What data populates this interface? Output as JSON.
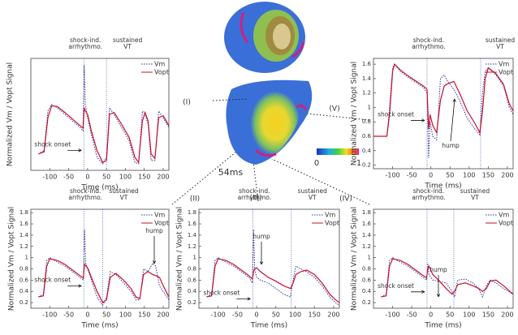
{
  "chart_data": [
    {
      "type": "line",
      "panel_label": "(I)",
      "xlabel": "Time (ms)",
      "ylabel": "Normalized Vm / Vopt Signal",
      "x": [
        -130,
        -115,
        -105,
        -95,
        -80,
        -60,
        -40,
        -20,
        -12,
        -9,
        -6,
        0,
        10,
        25,
        40,
        50,
        58,
        70,
        90,
        110,
        125,
        135,
        145,
        152,
        160,
        168,
        178,
        188,
        200,
        215
      ],
      "series": [
        {
          "name": "Vm",
          "color": "#33339a",
          "values": [
            0.25,
            0.3,
            0.9,
            1.0,
            0.95,
            0.85,
            0.75,
            0.65,
            0.6,
            1.6,
            1.0,
            0.8,
            0.55,
            0.2,
            0.1,
            0.2,
            0.95,
            0.85,
            0.65,
            0.45,
            0.12,
            0.1,
            0.9,
            0.85,
            0.7,
            0.15,
            0.15,
            0.9,
            0.8,
            0.65
          ]
        },
        {
          "name": "Vopt",
          "color": "#c8102e",
          "values": [
            0.25,
            0.28,
            0.8,
            0.98,
            0.97,
            0.88,
            0.78,
            0.68,
            0.64,
            0.95,
            0.9,
            0.85,
            0.6,
            0.3,
            0.12,
            0.15,
            0.85,
            0.88,
            0.7,
            0.5,
            0.2,
            0.12,
            0.75,
            0.88,
            0.75,
            0.25,
            0.18,
            0.8,
            0.83,
            0.68
          ]
        }
      ],
      "xlim": [
        -150,
        215
      ],
      "ylim": [
        0,
        1.7
      ],
      "xticks": [
        -100,
        -50,
        0,
        50,
        100,
        150,
        200
      ],
      "vlines": [
        -10,
        50
      ],
      "legend": "upper right",
      "annotations": [
        "shock-ind.",
        "arrhythmo.",
        "sustained",
        "VT",
        "shock onset"
      ]
    },
    {
      "type": "line",
      "panel_label": "(V)",
      "xlabel": "Time (ms)",
      "ylabel": "Normalized Vm / Vopt Signal",
      "x": [
        -150,
        -115,
        -108,
        -100,
        -95,
        -80,
        -60,
        -40,
        -20,
        -10,
        -6,
        -2,
        5,
        15,
        25,
        35,
        45,
        60,
        75,
        95,
        115,
        128,
        135,
        142,
        150,
        170,
        190,
        205,
        215
      ],
      "series": [
        {
          "name": "Vm",
          "color": "#33339a",
          "values": [
            0.6,
            0.6,
            1.0,
            1.55,
            1.6,
            1.5,
            1.42,
            1.35,
            1.28,
            1.2,
            0.3,
            0.8,
            0.6,
            0.55,
            1.4,
            1.45,
            1.35,
            1.25,
            1.1,
            0.85,
            0.7,
            0.62,
            1.2,
            1.5,
            1.55,
            1.45,
            1.3,
            1.0,
            0.9
          ]
        },
        {
          "name": "Vopt",
          "color": "#c8102e",
          "values": [
            0.6,
            0.6,
            0.9,
            1.5,
            1.6,
            1.52,
            1.44,
            1.37,
            1.3,
            1.25,
            0.7,
            0.9,
            0.75,
            0.65,
            1.1,
            1.3,
            1.33,
            1.36,
            1.2,
            0.95,
            0.78,
            0.65,
            0.95,
            1.4,
            1.55,
            1.47,
            1.32,
            1.05,
            0.95
          ]
        }
      ],
      "xlim": [
        -150,
        215
      ],
      "ylim": [
        0.15,
        1.68
      ],
      "xticks": [
        -100,
        -50,
        0,
        50,
        100,
        150,
        200
      ],
      "yticks": [
        0.2,
        0.4,
        0.6,
        0.8,
        1,
        1.2,
        1.4,
        1.6
      ],
      "vlines": [
        -10,
        130
      ],
      "legend": "upper right",
      "annotations": [
        "shock-ind.",
        "arrhythmo.",
        "sustained",
        "VT",
        "shock onset",
        "hump"
      ]
    },
    {
      "type": "line",
      "panel_label": "(II)",
      "xlabel": "Time (ms)",
      "ylabel": "Normalized Vm / Vopt Signal",
      "x": [
        -130,
        -117,
        -108,
        -100,
        -80,
        -60,
        -40,
        -20,
        -11,
        -8,
        -5,
        0,
        10,
        25,
        40,
        50,
        60,
        75,
        95,
        115,
        128,
        138,
        148,
        160,
        172,
        180,
        190,
        200,
        215
      ],
      "series": [
        {
          "name": "Vm",
          "color": "#33339a",
          "values": [
            0.3,
            0.35,
            0.95,
            1.0,
            0.92,
            0.85,
            0.75,
            0.65,
            0.6,
            1.5,
            0.9,
            0.8,
            0.6,
            0.3,
            0.15,
            0.3,
            0.75,
            0.7,
            0.55,
            0.4,
            0.25,
            0.25,
            0.8,
            0.75,
            0.9,
            0.85,
            0.5,
            0.4,
            0.25
          ]
        },
        {
          "name": "Vopt",
          "color": "#c8102e",
          "values": [
            0.3,
            0.32,
            0.85,
            0.98,
            0.95,
            0.88,
            0.78,
            0.68,
            0.64,
            0.88,
            0.86,
            0.82,
            0.65,
            0.4,
            0.2,
            0.25,
            0.65,
            0.72,
            0.6,
            0.45,
            0.3,
            0.27,
            0.7,
            0.75,
            0.7,
            0.68,
            0.65,
            0.5,
            0.3
          ]
        }
      ],
      "xlim": [
        -150,
        215
      ],
      "ylim": [
        0.1,
        1.86
      ],
      "xticks": [
        -100,
        -50,
        0,
        50,
        100,
        150,
        200
      ],
      "yticks": [
        0.2,
        0.4,
        0.6,
        0.8,
        1,
        1.2,
        1.4,
        1.6,
        1.8
      ],
      "vlines": [
        -10,
        40
      ],
      "legend": "upper right",
      "annotations": [
        "shock-ind.",
        "arrhythmo.",
        "sustained",
        "VT",
        "shock onset",
        "hump"
      ]
    },
    {
      "type": "line",
      "panel_label": "(III)",
      "xlabel": "Time (ms)",
      "ylabel": "Normalized Vm / Vopt Signal",
      "x": [
        -130,
        -117,
        -108,
        -100,
        -80,
        -60,
        -40,
        -20,
        -11,
        -8,
        -5,
        0,
        10,
        30,
        50,
        70,
        88,
        95,
        102,
        115,
        130,
        150,
        170,
        190,
        205,
        215
      ],
      "series": [
        {
          "name": "Vm",
          "color": "#33339a",
          "values": [
            0.3,
            0.35,
            0.95,
            1.0,
            0.92,
            0.85,
            0.75,
            0.65,
            0.55,
            1.5,
            0.8,
            0.65,
            0.6,
            0.55,
            0.45,
            0.35,
            0.3,
            0.6,
            0.85,
            0.8,
            0.75,
            0.65,
            0.5,
            0.3,
            0.2,
            0.15
          ]
        },
        {
          "name": "Vopt",
          "color": "#c8102e",
          "values": [
            0.3,
            0.32,
            0.85,
            0.98,
            0.95,
            0.88,
            0.78,
            0.68,
            0.62,
            0.75,
            0.8,
            0.82,
            0.75,
            0.65,
            0.58,
            0.5,
            0.45,
            0.55,
            0.7,
            0.75,
            0.78,
            0.7,
            0.55,
            0.35,
            0.25,
            0.2
          ]
        }
      ],
      "xlim": [
        -150,
        215
      ],
      "ylim": [
        0.1,
        1.86
      ],
      "xticks": [
        -100,
        -50,
        0,
        50,
        100,
        150,
        200
      ],
      "yticks": [
        0.2,
        0.4,
        0.6,
        0.8,
        1,
        1.2,
        1.4,
        1.6,
        1.8
      ],
      "vlines": [
        -10,
        90
      ],
      "legend": "upper right",
      "annotations": [
        "shock-ind.",
        "arrhythmo.",
        "sustained",
        "VT",
        "shock onset",
        "hump"
      ]
    },
    {
      "type": "line",
      "panel_label": "(IV)",
      "xlabel": "Time (ms)",
      "ylabel": "Normalized Vm / Vopt Signal",
      "x": [
        -130,
        -117,
        -108,
        -100,
        -80,
        -60,
        -40,
        -20,
        -11,
        -8,
        -5,
        5,
        20,
        40,
        55,
        62,
        70,
        90,
        110,
        125,
        135,
        145,
        155,
        170,
        190,
        215
      ],
      "series": [
        {
          "name": "Vm",
          "color": "#33339a",
          "values": [
            0.3,
            0.35,
            0.95,
            1.0,
            0.92,
            0.85,
            0.75,
            0.65,
            0.6,
            0.9,
            0.7,
            0.6,
            0.58,
            0.55,
            0.4,
            0.3,
            0.6,
            0.62,
            0.55,
            0.45,
            0.3,
            0.5,
            0.6,
            0.55,
            0.45,
            0.35
          ]
        },
        {
          "name": "Vopt",
          "color": "#c8102e",
          "values": [
            0.3,
            0.32,
            0.85,
            0.98,
            0.95,
            0.88,
            0.78,
            0.68,
            0.64,
            0.8,
            0.85,
            0.7,
            0.6,
            0.45,
            0.35,
            0.4,
            0.52,
            0.55,
            0.5,
            0.45,
            0.4,
            0.45,
            0.58,
            0.6,
            0.5,
            0.35
          ]
        }
      ],
      "xlim": [
        -150,
        215
      ],
      "ylim": [
        0.1,
        1.86
      ],
      "xticks": [
        -100,
        -50,
        0,
        50,
        100,
        150,
        200
      ],
      "yticks": [
        0.2,
        0.4,
        0.6,
        0.8,
        1,
        1.2,
        1.4,
        1.6,
        1.8
      ],
      "vlines": [
        -10,
        60
      ],
      "legend": "upper right",
      "annotations": [
        "shock-ind.",
        "arrhythmo.",
        "sustained",
        "VT",
        "shock onset",
        "hump"
      ]
    }
  ],
  "figure": {
    "time_stamp": "54ms",
    "colorbar_min": 0,
    "colorbar_max": 1
  }
}
